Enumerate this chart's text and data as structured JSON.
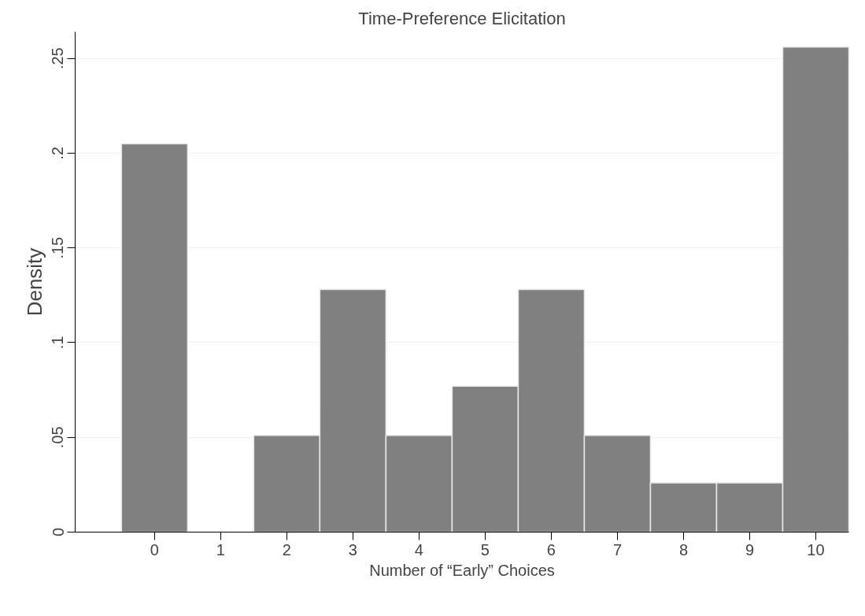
{
  "chart_data": {
    "type": "bar",
    "title": "Time-Preference Elicitation",
    "xlabel": "Number of “Early” Choices",
    "ylabel": "Density",
    "x": [
      0,
      1,
      2,
      3,
      4,
      5,
      6,
      7,
      8,
      9,
      10
    ],
    "values": [
      0.205,
      0,
      0.051,
      0.128,
      0.051,
      0.077,
      0.128,
      0.051,
      0.026,
      0.026,
      0.256
    ],
    "color": "#808080",
    "xlim": [
      -1.2,
      10.5
    ],
    "ylim": [
      0,
      0.264
    ],
    "xticks": [
      0,
      1,
      2,
      3,
      4,
      5,
      6,
      7,
      8,
      9,
      10
    ],
    "yticks": [
      {
        "value": 0,
        "label": "0"
      },
      {
        "value": 0.05,
        "label": ".05"
      },
      {
        "value": 0.1,
        "label": ".1"
      },
      {
        "value": 0.15,
        "label": ".15"
      },
      {
        "value": 0.2,
        "label": ".2"
      },
      {
        "value": 0.25,
        "label": ".25"
      }
    ],
    "grid": "y"
  }
}
